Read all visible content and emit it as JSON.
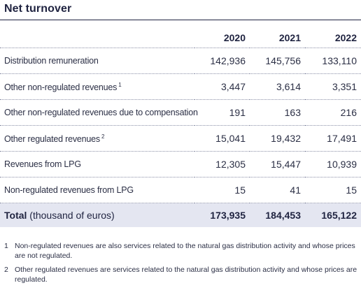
{
  "title": "Net turnover",
  "table": {
    "years": [
      "2020",
      "2021",
      "2022"
    ],
    "rows": [
      {
        "label": "Distribution remuneration",
        "note": "",
        "values": [
          "142,936",
          "145,756",
          "133,110"
        ]
      },
      {
        "label": "Other non-regulated revenues",
        "note": "1",
        "values": [
          "3,447",
          "3,614",
          "3,351"
        ]
      },
      {
        "label": "Other non-regulated revenues due to compensation",
        "note": "",
        "values": [
          "191",
          "163",
          "216"
        ]
      },
      {
        "label": "Other regulated revenues",
        "note": "2",
        "values": [
          "15,041",
          "19,432",
          "17,491"
        ]
      },
      {
        "label": "Revenues from LPG",
        "note": "",
        "values": [
          "12,305",
          "15,447",
          "10,939"
        ]
      },
      {
        "label": "Non-regulated revenues from LPG",
        "note": "",
        "values": [
          "15",
          "41",
          "15"
        ]
      }
    ],
    "total": {
      "label": "Total",
      "unit": "(thousand of euros)",
      "values": [
        "173,935",
        "184,453",
        "165,122"
      ]
    }
  },
  "footnotes": [
    {
      "mark": "1",
      "text": "Non-regulated revenues are also services related to the natural gas distribution activity and whose prices are not regulated."
    },
    {
      "mark": "2",
      "text": "Other regulated revenues are services related to the natural gas distribution activity and whose prices are regulated."
    }
  ]
}
